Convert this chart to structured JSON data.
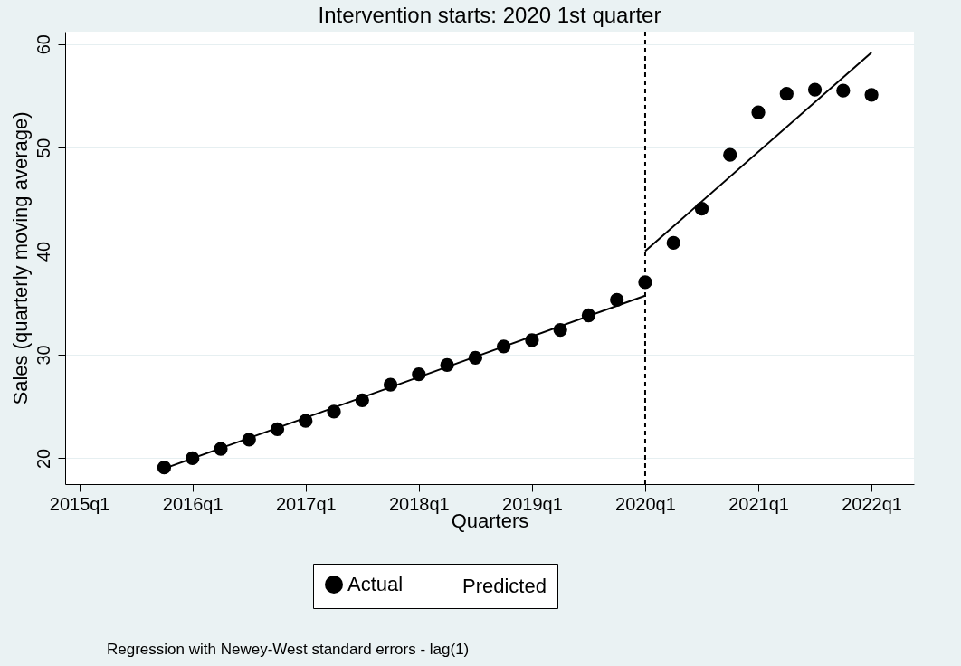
{
  "chart_data": {
    "type": "scatter",
    "title": "Intervention starts: 2020 1st quarter",
    "xlabel": "Quarters",
    "ylabel": "Sales (quarterly moving average)",
    "categories": [
      "2015q1",
      null,
      null,
      null,
      "2016q1",
      null,
      null,
      null,
      "2017q1",
      null,
      null,
      null,
      "2018q1",
      null,
      null,
      null,
      "2019q1",
      null,
      null,
      null,
      "2020q1",
      null,
      null,
      null,
      "2021q1",
      null,
      null,
      null,
      "2022q1",
      null
    ],
    "ylim": [
      17.5,
      61.2
    ],
    "yticks": [
      20,
      30,
      40,
      50,
      60
    ],
    "grid": "y",
    "legend": "bottom",
    "marker": "circle",
    "series": [
      {
        "name": "Actual",
        "color": "#000000",
        "values": [
          null,
          null,
          null,
          19.1,
          20.0,
          20.9,
          21.8,
          22.8,
          23.6,
          24.5,
          25.6,
          27.1,
          28.1,
          29.0,
          29.7,
          30.8,
          31.4,
          32.4,
          33.8,
          35.3,
          37.0,
          40.8,
          44.1,
          49.3,
          53.4,
          55.2,
          55.6,
          55.5,
          55.1,
          null
        ]
      },
      {
        "name": "Predicted",
        "type": "line",
        "marker": "none",
        "color": "#000000",
        "values": [
          null,
          null,
          null,
          19.0,
          null,
          null,
          null,
          null,
          null,
          null,
          null,
          null,
          null,
          null,
          null,
          null,
          null,
          null,
          null,
          null,
          35.7,
          null,
          null,
          null,
          null,
          null,
          null,
          null,
          null,
          null
        ]
      },
      {
        "type": "line",
        "marker": "none",
        "color": "#000000",
        "values": [
          null,
          null,
          null,
          null,
          null,
          null,
          null,
          null,
          null,
          null,
          null,
          null,
          null,
          null,
          null,
          null,
          null,
          null,
          null,
          null,
          40.0,
          null,
          null,
          null,
          null,
          null,
          null,
          null,
          59.2,
          null
        ]
      }
    ],
    "ref_lines": [
      {
        "axis": "x",
        "value": "2020q1",
        "color": "#000000",
        "line_style": "dashed"
      }
    ],
    "annotations": [
      "Regression with Newey-West standard errors - lag(1)"
    ]
  }
}
